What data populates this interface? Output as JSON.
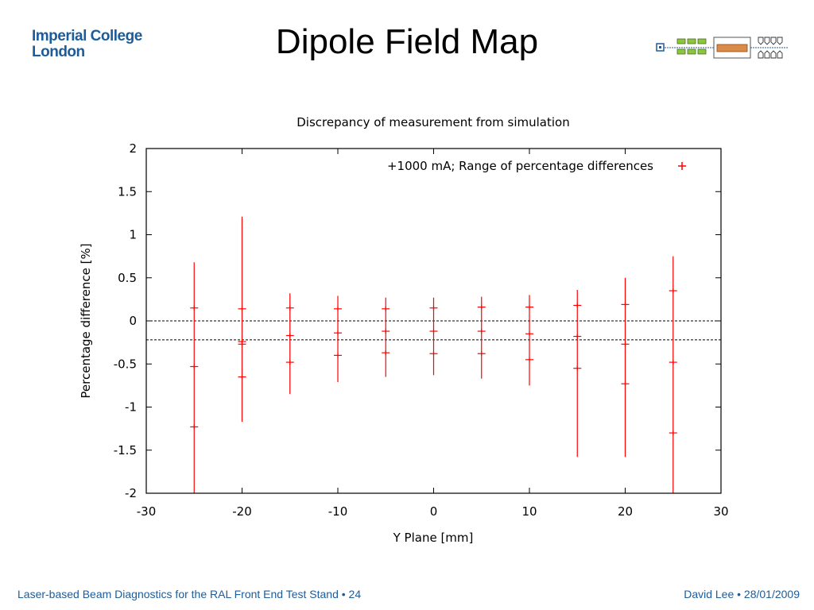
{
  "logo": {
    "line1": "Imperial College",
    "line2": "London"
  },
  "slide_title": "Dipole Field Map",
  "footer": {
    "left": "Laser-based Beam Diagnostics for the RAL Front End Test Stand • 24",
    "right": "David Lee • 28/01/2009"
  },
  "colors": {
    "brand": "#1d5c9a",
    "series": "#ff0000",
    "axis": "#000000"
  },
  "chart_data": {
    "type": "scatter",
    "title": "Discrepancy of measurement from simulation",
    "xlabel": "Y Plane [mm]",
    "ylabel": "Percentage difference [%]",
    "xlim": [
      -30,
      30
    ],
    "ylim": [
      -2,
      2
    ],
    "xticks": [
      "-30",
      "-20",
      "-10",
      "0",
      "10",
      "20",
      "30"
    ],
    "yticks": [
      "-2",
      "-1.5",
      "-1",
      "-0.5",
      "0",
      "0.5",
      "1",
      "1.5",
      "2"
    ],
    "grid": false,
    "legend_position": "top-right",
    "reference_lines": [
      0,
      -0.22
    ],
    "series": [
      {
        "name": "+1000 mA; Range of percentage differences",
        "color": "#ff0000",
        "marker": "plus",
        "errorbars": [
          {
            "x": -25,
            "low": -2.0,
            "high": 0.68
          },
          {
            "x": -20,
            "low": -1.17,
            "high": 1.21
          },
          {
            "x": -15,
            "low": -0.85,
            "high": 0.32
          },
          {
            "x": -10,
            "low": -0.71,
            "high": 0.29
          },
          {
            "x": -5,
            "low": -0.65,
            "high": 0.27
          },
          {
            "x": 0,
            "low": -0.63,
            "high": 0.27
          },
          {
            "x": 5,
            "low": -0.67,
            "high": 0.28
          },
          {
            "x": 10,
            "low": -0.75,
            "high": 0.3
          },
          {
            "x": 15,
            "low": -1.58,
            "high": 0.36
          },
          {
            "x": 20,
            "low": -1.58,
            "high": 0.5
          },
          {
            "x": 25,
            "low": -2.0,
            "high": 0.75
          }
        ],
        "points": [
          {
            "x": -25,
            "y": 0.15
          },
          {
            "x": -25,
            "y": -0.53
          },
          {
            "x": -25,
            "y": -1.23
          },
          {
            "x": -20,
            "y": 0.14
          },
          {
            "x": -20,
            "y": -0.24
          },
          {
            "x": -20,
            "y": -0.27
          },
          {
            "x": -20,
            "y": -0.65
          },
          {
            "x": -15,
            "y": 0.15
          },
          {
            "x": -15,
            "y": -0.17
          },
          {
            "x": -15,
            "y": -0.48
          },
          {
            "x": -10,
            "y": 0.14
          },
          {
            "x": -10,
            "y": -0.14
          },
          {
            "x": -10,
            "y": -0.4
          },
          {
            "x": -5,
            "y": 0.14
          },
          {
            "x": -5,
            "y": -0.12
          },
          {
            "x": -5,
            "y": -0.37
          },
          {
            "x": 0,
            "y": 0.15
          },
          {
            "x": 0,
            "y": -0.12
          },
          {
            "x": 0,
            "y": -0.38
          },
          {
            "x": 5,
            "y": 0.16
          },
          {
            "x": 5,
            "y": -0.12
          },
          {
            "x": 5,
            "y": -0.38
          },
          {
            "x": 10,
            "y": 0.16
          },
          {
            "x": 10,
            "y": -0.15
          },
          {
            "x": 10,
            "y": -0.45
          },
          {
            "x": 15,
            "y": 0.18
          },
          {
            "x": 15,
            "y": -0.18
          },
          {
            "x": 15,
            "y": -0.55
          },
          {
            "x": 20,
            "y": 0.19
          },
          {
            "x": 20,
            "y": -0.27
          },
          {
            "x": 20,
            "y": -0.73
          },
          {
            "x": 25,
            "y": 0.35
          },
          {
            "x": 25,
            "y": -0.48
          },
          {
            "x": 25,
            "y": -1.3
          }
        ]
      }
    ]
  }
}
